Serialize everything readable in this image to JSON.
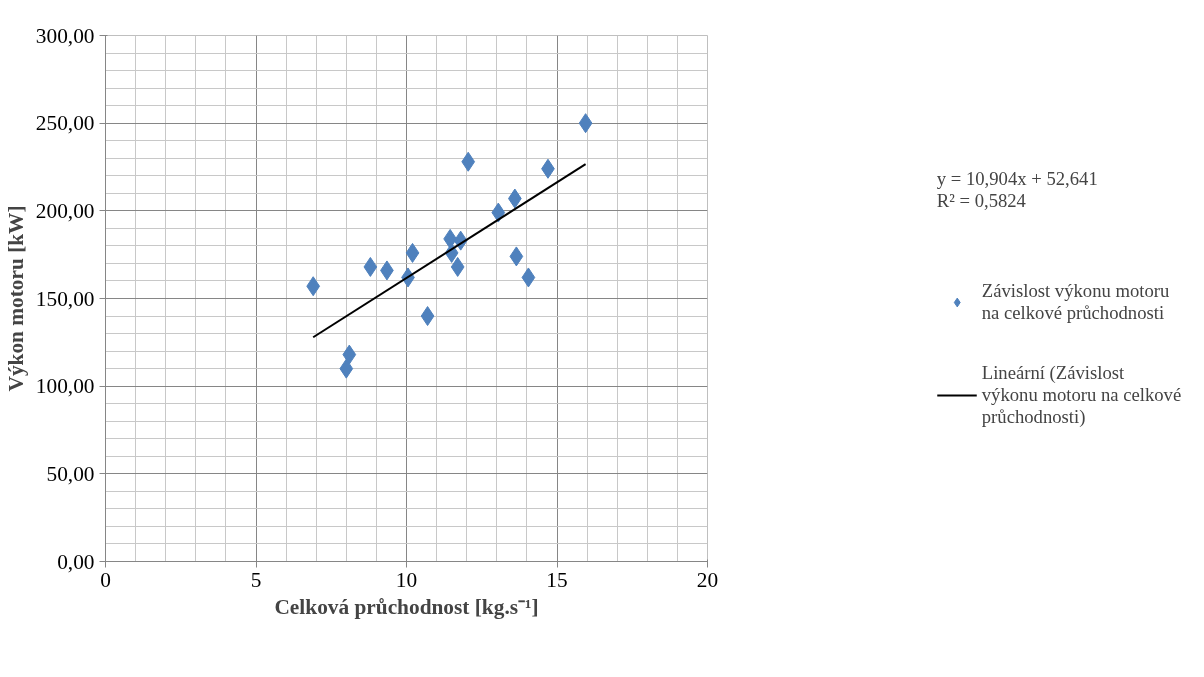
{
  "chart_data": {
    "type": "scatter",
    "xlabel": "Celková průchodnost [kg.s⁻¹]",
    "ylabel": "Výkon motoru [kW]",
    "xlim": [
      0,
      20
    ],
    "xticks": [
      0,
      5,
      10,
      15,
      20
    ],
    "ylim": [
      0,
      300
    ],
    "yticks": [
      {
        "value": 0,
        "label": "0,00"
      },
      {
        "value": 50,
        "label": "50,00"
      },
      {
        "value": 100,
        "label": "100,00"
      },
      {
        "value": 150,
        "label": "150,00"
      },
      {
        "value": 200,
        "label": "200,00"
      },
      {
        "value": 250,
        "label": "250,00"
      },
      {
        "value": 300,
        "label": "300,00"
      }
    ],
    "grid": true,
    "legend": "right",
    "annotations": [
      "y = 10,904x + 52,641",
      "R² = 0,5824"
    ],
    "series": [
      {
        "name": "Závislost výkonu motoru na celkové průchodnosti",
        "color": "#4f81bd",
        "marker": "diamond",
        "x": [
          6.9,
          8.0,
          8.1,
          8.8,
          9.35,
          10.05,
          10.2,
          10.7,
          11.45,
          11.5,
          11.8,
          11.7,
          12.05,
          13.05,
          13.6,
          13.65,
          14.05,
          14.7,
          15.95
        ],
        "values": [
          157,
          110,
          118,
          168,
          166,
          162,
          176,
          140,
          184,
          176,
          183,
          168,
          228,
          199,
          207,
          174,
          162,
          224,
          250
        ]
      },
      {
        "name": "Lineární (Závislost výkonu motoru na celkové průchodnosti)",
        "type": "line",
        "color": "#000000",
        "line_style": "solid",
        "marker": "none",
        "x": [
          6.9,
          15.95
        ],
        "values": [
          127.9,
          226.6
        ]
      }
    ]
  }
}
